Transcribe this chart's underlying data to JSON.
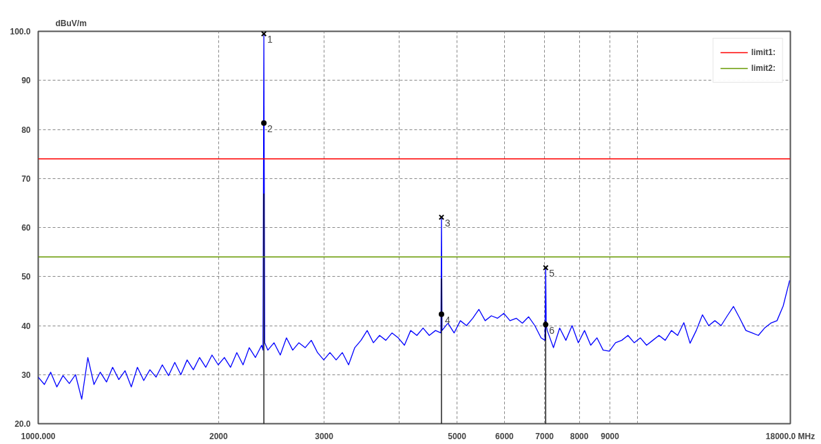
{
  "chart_data": {
    "type": "line",
    "ylabel": "dBuV/m",
    "log": "x",
    "xlim": [
      1000,
      18000
    ],
    "ylim": [
      20,
      100
    ],
    "xticks": [
      {
        "value": 1000,
        "label": "1000.000"
      },
      2000,
      3000,
      {
        "value": 4000,
        "label": null
      },
      5000,
      6000,
      7000,
      8000,
      9000,
      {
        "value": 10000,
        "label": null
      },
      {
        "value": 18000,
        "label": "18000.0 MHz"
      }
    ],
    "yticks": [
      {
        "value": 20,
        "label": "20.0"
      },
      30,
      40,
      50,
      60,
      70,
      80,
      90,
      {
        "value": 100,
        "label": "100.0"
      }
    ],
    "grid": true,
    "legend": "top right",
    "line_style": "solid",
    "marker": "none",
    "series": [
      {
        "color": "#0000ff",
        "x": [
          1000,
          1024,
          1049,
          1074,
          1100,
          1127,
          1154,
          1182,
          1210,
          1239,
          1269,
          1300,
          1331,
          1363,
          1396,
          1430,
          1464,
          1500,
          1536,
          1573,
          1611,
          1650,
          1690,
          1730,
          1772,
          1815,
          1859,
          1904,
          1950,
          1997,
          2045,
          2094,
          2145,
          2197,
          2250,
          2304,
          2360,
          2372,
          2380,
          2388,
          2417,
          2475,
          2535,
          2596,
          2659,
          2723,
          2789,
          2856,
          2925,
          2996,
          3068,
          3142,
          3218,
          3296,
          3375,
          3457,
          3540,
          3626,
          3713,
          3803,
          3895,
          3989,
          4085,
          4184,
          4285,
          4388,
          4494,
          4603,
          4700,
          4710,
          4720,
          4828,
          4944,
          5064,
          5186,
          5311,
          5439,
          5571,
          5705,
          5843,
          5984,
          6129,
          6277,
          6428,
          6583,
          6742,
          6905,
          7010,
          7030,
          7045,
          7072,
          7243,
          7418,
          7597,
          7780,
          7968,
          8161,
          8358,
          8560,
          8766,
          8978,
          9194,
          9416,
          9644,
          9877,
          10115,
          10359,
          10610,
          10866,
          11128,
          11397,
          11672,
          11954,
          12243,
          12538,
          12841,
          13151,
          13469,
          13794,
          14127,
          14468,
          14818,
          15176,
          15542,
          15917,
          16302,
          16695,
          17098,
          17511,
          17950
        ],
        "values": [
          29.5,
          28.0,
          30.5,
          27.5,
          29.8,
          28.2,
          30.0,
          25.0,
          33.5,
          28.0,
          30.5,
          28.5,
          31.5,
          29.0,
          30.8,
          27.5,
          31.5,
          28.8,
          31.0,
          29.5,
          32.0,
          29.8,
          32.5,
          30.0,
          33.0,
          31.0,
          33.5,
          31.5,
          34.0,
          32.0,
          33.5,
          31.5,
          34.5,
          32.0,
          35.5,
          33.5,
          36.0,
          35.0,
          99.5,
          36.5,
          35.0,
          36.5,
          34.0,
          37.5,
          35.0,
          36.5,
          35.5,
          37.0,
          34.5,
          33.0,
          34.5,
          33.0,
          34.5,
          32.0,
          35.5,
          37.0,
          39.0,
          36.5,
          38.0,
          37.0,
          38.5,
          37.5,
          36.0,
          39.0,
          38.0,
          39.5,
          38.0,
          39.0,
          38.5,
          62.1,
          39.0,
          40.5,
          38.5,
          41.0,
          40.0,
          41.5,
          43.3,
          41.0,
          42.0,
          41.5,
          42.5,
          41.0,
          41.5,
          40.5,
          41.8,
          40.0,
          37.5,
          37.0,
          51.8,
          40.0,
          39.0,
          35.5,
          39.5,
          37.0,
          40.0,
          36.5,
          39.0,
          36.0,
          37.5,
          35.0,
          34.8,
          36.5,
          37.0,
          38.0,
          36.5,
          37.5,
          36.0,
          37.0,
          38.0,
          37.0,
          39.0,
          38.0,
          40.6,
          36.4,
          39.0,
          42.2,
          40.0,
          41.0,
          40.0,
          42.0,
          43.9,
          41.5,
          39.0,
          38.5,
          38.0,
          39.5,
          40.5,
          41.0,
          44.0,
          49.2
        ]
      },
      {
        "color": "#000000",
        "x": [
          2380,
          2380,
          null,
          4710,
          4710,
          null,
          7030,
          7030
        ],
        "values": [
          20,
          66.9,
          null,
          20,
          49.6,
          null,
          20,
          41.0
        ]
      },
      {
        "type": "scatter",
        "marker": "cross",
        "color": "#000000",
        "x": [
          2380,
          4710,
          7030
        ],
        "values": [
          99.5,
          62.1,
          51.8
        ]
      },
      {
        "type": "scatter",
        "marker": "circle",
        "color": "#000000",
        "x": [
          2380,
          4710,
          7030
        ],
        "values": [
          81.3,
          42.3,
          40.2
        ]
      }
    ],
    "ref_lines": [
      {
        "axis": "y",
        "value": 74,
        "label": "limit1:",
        "color": "#ff0000"
      },
      {
        "axis": "y",
        "value": 54,
        "label": "limit2:",
        "color": "#669900"
      }
    ],
    "annotations": [
      {
        "text": "1",
        "x": 2380,
        "y": 99.5
      },
      {
        "text": "2",
        "x": 2380,
        "y": 81.3
      },
      {
        "text": "3",
        "x": 4710,
        "y": 62.1
      },
      {
        "text": "4",
        "x": 4710,
        "y": 42.3
      },
      {
        "text": "5",
        "x": 7030,
        "y": 51.8
      },
      {
        "text": "6",
        "x": 7030,
        "y": 40.2
      }
    ]
  }
}
